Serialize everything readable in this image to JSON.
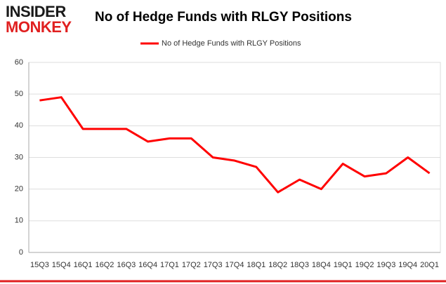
{
  "logo": {
    "top": "INSIDER",
    "bottom": "MONKEY"
  },
  "chart_data": {
    "type": "line",
    "title": "No of Hedge Funds with RLGY Positions",
    "categories": [
      "15Q3",
      "15Q4",
      "16Q1",
      "16Q2",
      "16Q3",
      "16Q4",
      "17Q1",
      "17Q2",
      "17Q3",
      "17Q4",
      "18Q1",
      "18Q2",
      "18Q3",
      "18Q4",
      "19Q1",
      "19Q2",
      "19Q3",
      "19Q4",
      "20Q1"
    ],
    "series": [
      {
        "name": "No of Hedge Funds with RLGY Positions",
        "color": "#ff0000",
        "values": [
          48,
          49,
          39,
          39,
          39,
          35,
          36,
          36,
          30,
          29,
          27,
          19,
          23,
          20,
          28,
          24,
          25,
          30,
          25
        ]
      }
    ],
    "ylim": [
      0,
      60
    ],
    "yticks": [
      0,
      10,
      20,
      30,
      40,
      50,
      60
    ],
    "grid": true,
    "legend": "top"
  }
}
